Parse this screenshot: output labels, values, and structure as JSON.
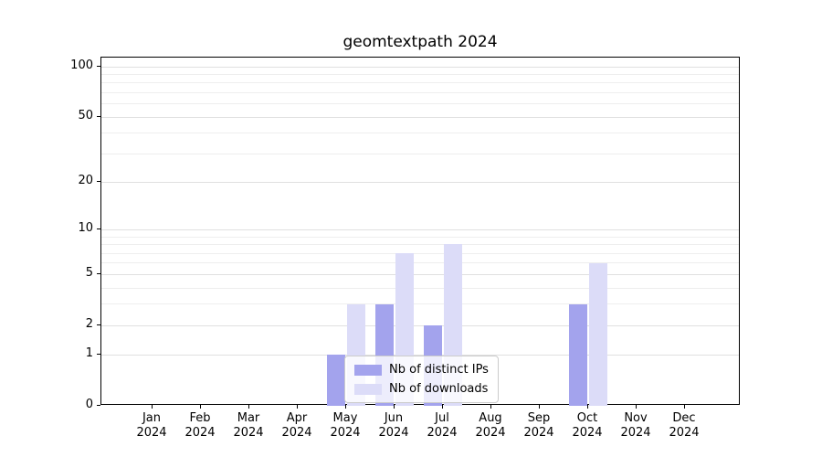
{
  "chart_data": {
    "type": "bar",
    "title": "geomtextpath 2024",
    "categories": [
      "Jan 2024",
      "Feb 2024",
      "Mar 2024",
      "Apr 2024",
      "May 2024",
      "Jun 2024",
      "Jul 2024",
      "Aug 2024",
      "Sep 2024",
      "Oct 2024",
      "Nov 2024",
      "Dec 2024"
    ],
    "series": [
      {
        "name": "Nb of distinct IPs",
        "color": "#a3a3ed",
        "values": [
          0,
          0,
          0,
          0,
          1,
          3,
          2,
          0,
          0,
          3,
          0,
          0
        ]
      },
      {
        "name": "Nb of downloads",
        "color": "#dcdcf8",
        "values": [
          0,
          0,
          0,
          0,
          3,
          7,
          8,
          0,
          0,
          6,
          0,
          0
        ]
      }
    ],
    "xlabel": "",
    "ylabel": "",
    "yscale": "log1p",
    "yticks": [
      0,
      1,
      2,
      5,
      10,
      20,
      50,
      100
    ],
    "minor_gridlines": [
      3,
      4,
      6,
      7,
      8,
      9,
      30,
      40,
      60,
      70,
      80,
      90
    ],
    "ylim": [
      0,
      113
    ],
    "grid": "horizontal",
    "legend_position": "inside-bottom-center"
  }
}
